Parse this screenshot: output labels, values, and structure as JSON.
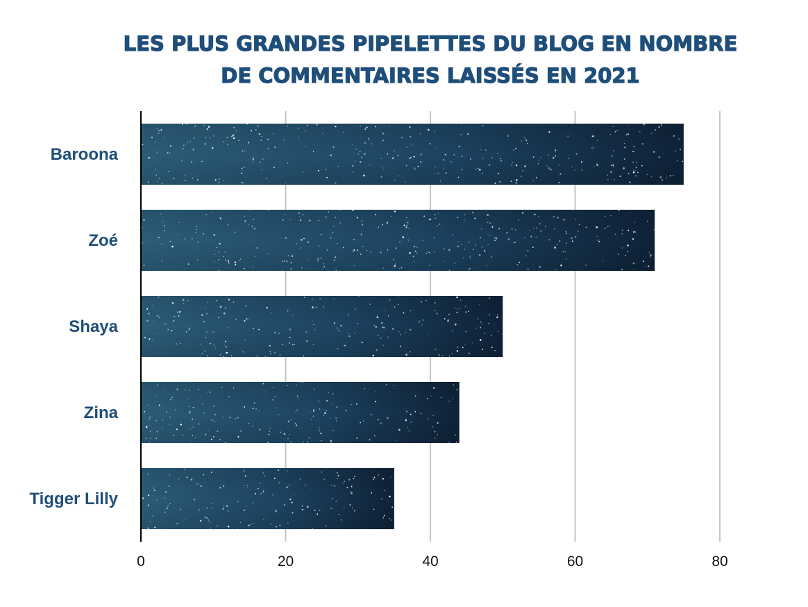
{
  "chart_data": {
    "type": "bar",
    "orientation": "horizontal",
    "title": "LES PLUS GRANDES PIPELETTES DU BLOG EN NOMBRE DE COMMENTAIRES LAISSÉS EN 2021",
    "title_lines": [
      "LES PLUS GRANDES PIPELETTES DU BLOG EN NOMBRE",
      "DE COMMENTAIRES LAISSÉS EN 2021"
    ],
    "categories": [
      "Baroona",
      "Zoé",
      "Shaya",
      "Zina",
      "Tigger Lilly"
    ],
    "values": [
      75,
      71,
      50,
      44,
      35
    ],
    "xlim": [
      0,
      80
    ],
    "xticks": [
      "0",
      "20",
      "40",
      "60",
      "80"
    ],
    "xlabel": "",
    "ylabel": "",
    "grid": true,
    "legend": "none",
    "colors": {
      "title": "#1f4e7a",
      "category_label": "#1f4e7a",
      "bar_light": "#2d5f7a",
      "bar_dark": "#0f2238",
      "grid": "#c4c4c4",
      "axis": "#000000"
    }
  }
}
